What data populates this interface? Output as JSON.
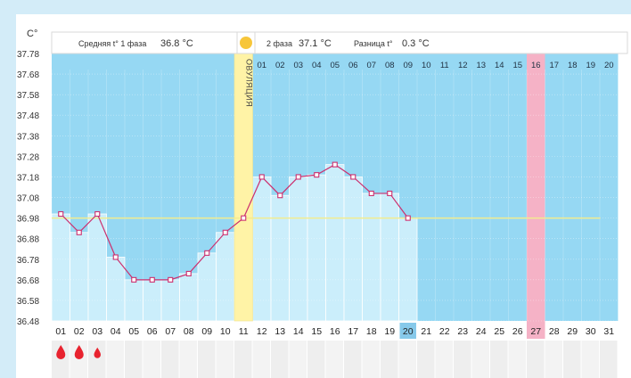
{
  "header": {
    "unit_label": "C°",
    "phase1_label": "Средняя t° 1 фаза",
    "phase1_value": "36.8 °C",
    "phase2_label": "2 фаза",
    "phase2_value": "37.1 °C",
    "diff_label": "Разница t°",
    "diff_value": "0.3 °C",
    "ovulation_label": "ОВУЛЯЦИЯ"
  },
  "colors": {
    "page_bg": "#d3ecf8",
    "plot_bg": "#96d8f3",
    "bar_fill": "#cbeefb",
    "ovulation_band": "#fff3a6",
    "sun": "#f7c63a",
    "line": "#cc2f6e",
    "coverline": "#f2ec8f",
    "highlight_day": "#f5b2c6",
    "current_day_box": "#87c9ea",
    "drop": "#e8232f",
    "strip": "#e5e5e5"
  },
  "chart_data": {
    "type": "line",
    "ylabel": "C°",
    "ylim": [
      36.48,
      37.78
    ],
    "y_ticks": [
      "37.78",
      "37.68",
      "37.58",
      "37.48",
      "37.38",
      "37.28",
      "37.18",
      "37.08",
      "36.98",
      "36.88",
      "36.78",
      "36.68",
      "36.58",
      "36.48"
    ],
    "x_ticks": [
      "01",
      "02",
      "03",
      "04",
      "05",
      "06",
      "07",
      "08",
      "09",
      "10",
      "11",
      "12",
      "13",
      "14",
      "15",
      "16",
      "17",
      "18",
      "19",
      "20",
      "21",
      "22",
      "23",
      "24",
      "25",
      "26",
      "27",
      "28",
      "29",
      "30",
      "31"
    ],
    "phase2_ticks": [
      "01",
      "02",
      "03",
      "04",
      "05",
      "06",
      "07",
      "08",
      "09",
      "10",
      "11",
      "12",
      "13",
      "14",
      "15",
      "16",
      "17",
      "18",
      "19",
      "20"
    ],
    "highlighted_phase2_day": "16",
    "current_day": "20",
    "coverline": 36.98,
    "ovulation_day": "11",
    "series": [
      {
        "values": [
          37.0,
          36.91,
          37.0,
          36.79,
          36.68,
          36.68,
          36.68,
          36.71,
          36.81,
          36.91,
          36.98,
          37.18,
          37.09,
          37.18,
          37.19,
          37.24,
          37.18,
          37.1,
          37.1,
          36.98
        ]
      }
    ],
    "menstruation_days": [
      "01",
      "02",
      "03"
    ]
  }
}
